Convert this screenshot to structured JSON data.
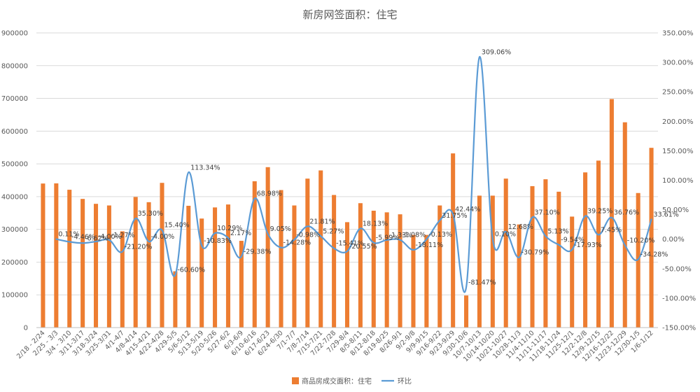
{
  "chart_data": {
    "type": "bar",
    "title": "新房网签面积：住宅",
    "categories": [
      "2/18 - 2/24",
      "2/25 - 3/3",
      "3/4 - 3/10",
      "3/11-3/17",
      "3/18-3/24",
      "3/25-3/31",
      "4/1-4/7",
      "4/8-4/14",
      "4/15-4/21",
      "4/22-4/28",
      "4/29-5/5",
      "5/6-5/12",
      "5/13-5/19",
      "5/20-5/26",
      "5/27-6/2",
      "6/3-6/9",
      "6/10-6/16",
      "6/17-6/23",
      "6/24-6/30",
      "7/1-7/7",
      "7/8-7/14",
      "7/15-7/21",
      "7/22-7/28",
      "7/29-8/4",
      "8/5-8/11",
      "8/12-8/18",
      "8/19-8/25",
      "8/26-9/1",
      "9/2-9/8",
      "9/9-9/15",
      "9/16-9/22",
      "9/23-9/29",
      "9/30-10/6",
      "10/7-10/13",
      "10/14-10/20",
      "10/21-10/27",
      "10/28-11/3",
      "11/4-11/10",
      "11/11-11/17",
      "11/18-11/24",
      "11/25-12/1",
      "12/2-12/8",
      "12/9-12/15",
      "12/16-12/22",
      "12/23-12/29",
      "12/30-1/5",
      "1/6-1/12"
    ],
    "series": [
      {
        "name": "商品房成交面积：住宅",
        "kind": "bar",
        "axis": "left",
        "color": "#ED7D31",
        "values": [
          440000,
          440500,
          421000,
          393000,
          378000,
          373000,
          294000,
          399000,
          383000,
          442000,
          172000,
          372000,
          333000,
          367000,
          376000,
          265000,
          447000,
          490000,
          420000,
          373000,
          455000,
          480000,
          405000,
          322000,
          380000,
          357000,
          352000,
          346000,
          283000,
          283000,
          373000,
          532000,
          98000,
          403000,
          403000,
          455000,
          315000,
          432000,
          453000,
          415000,
          339000,
          474000,
          510000,
          698000,
          627000,
          411000,
          549000
        ]
      },
      {
        "name": "环比",
        "kind": "line",
        "axis": "right",
        "color": "#5B9BD5",
        "values": [
          null,
          0.11,
          -4.46,
          -6.62,
          -4.0,
          -1.27,
          -21.2,
          35.3,
          -4.0,
          15.4,
          -60.6,
          113.34,
          -10.83,
          10.29,
          2.17,
          -29.38,
          68.98,
          9.05,
          -14.28,
          -0.98,
          21.81,
          5.27,
          -15.41,
          -20.55,
          18.13,
          -5.99,
          -1.33,
          -1.08,
          -18.11,
          -0.13,
          31.75,
          42.44,
          -81.47,
          309.06,
          0.1,
          12.68,
          -30.79,
          37.1,
          5.13,
          -9.54,
          -17.93,
          39.25,
          7.45,
          36.76,
          -10.2,
          -34.28,
          33.61
        ]
      }
    ],
    "line_labels": [
      null,
      "0.11%",
      "-4.46%",
      "-6.62%",
      "-4.00%",
      "-1.27%",
      "-21.20%",
      "35.30%",
      "-4.00%",
      "15.40%",
      "-60.60%",
      "113.34%",
      "-10.83%",
      "10.29%",
      "2.17%",
      "-29.38%",
      "68.98%",
      "9.05%",
      "-14.28%",
      "-0.98%",
      "21.81%",
      "5.27%",
      "-15.41%",
      "-20.55%",
      "18.13%",
      "-5.99%",
      "-1.33%",
      "-1.08%",
      "-18.11%",
      "-0.13%",
      "31.75%",
      "42.44%",
      "-81.47%",
      "309.06%",
      "0.10%",
      "12.68%",
      "-30.79%",
      "37.10%",
      "5.13%",
      "-9.54%",
      "-17.93%",
      "39.25%",
      "7.45%",
      "36.76%",
      "-10.20%",
      "-34.28%",
      "33.61%"
    ],
    "y_left": {
      "min": 0,
      "max": 900000,
      "step": 100000,
      "ticks": [
        "0",
        "100000",
        "200000",
        "300000",
        "400000",
        "500000",
        "600000",
        "700000",
        "800000",
        "900000"
      ]
    },
    "y_right": {
      "min": -150,
      "max": 350,
      "step": 50,
      "ticks": [
        "-150.00%",
        "-100.00%",
        "-50.00%",
        "0.00%",
        "50.00%",
        "100.00%",
        "150.00%",
        "200.00%",
        "250.00%",
        "300.00%",
        "350.00%"
      ]
    },
    "grid": true,
    "legend": "bottom",
    "legend_items": [
      "商品房成交面积：住宅",
      "环比"
    ]
  }
}
